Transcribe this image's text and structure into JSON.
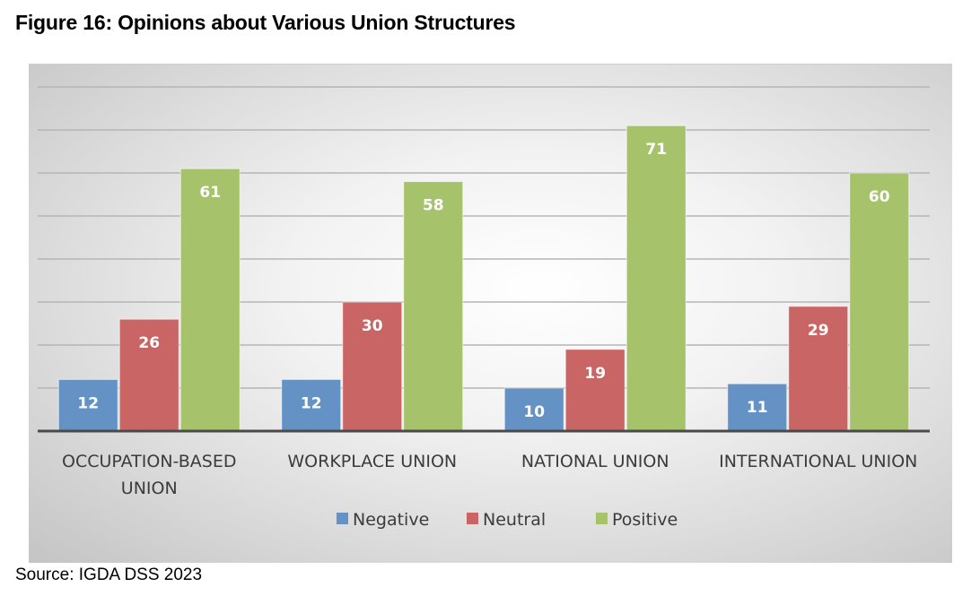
{
  "figure_title": "Figure 16: Opinions about Various Union Structures",
  "source": "Source: IGDA DSS 2023",
  "colors": {
    "Negative": "#6592c5",
    "Neutral": "#c96665",
    "Positive": "#a6c36c",
    "axis": "#4a4a4a",
    "grid": "#b5b5b5",
    "label": "#3b3b3b"
  },
  "chart_data": {
    "type": "bar",
    "title": "Figure 16: Opinions about Various Union Structures",
    "xlabel": "",
    "ylabel": "",
    "ylim": [
      0,
      80
    ],
    "grid": true,
    "legend_position": "bottom",
    "categories": [
      [
        "OCCUPATION-BASED",
        "UNION"
      ],
      [
        "WORKPLACE UNION"
      ],
      [
        "NATIONAL UNION"
      ],
      [
        "INTERNATIONAL UNION"
      ]
    ],
    "series": [
      {
        "name": "Negative",
        "values": [
          12,
          12,
          10,
          11
        ]
      },
      {
        "name": "Neutral",
        "values": [
          26,
          30,
          19,
          29
        ]
      },
      {
        "name": "Positive",
        "values": [
          61,
          58,
          71,
          60
        ]
      }
    ]
  }
}
